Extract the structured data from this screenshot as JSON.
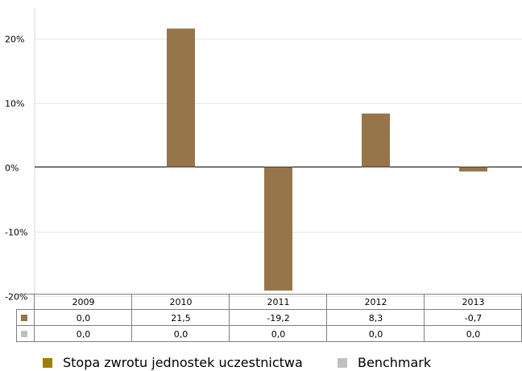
{
  "chart_data": {
    "type": "bar",
    "categories": [
      "2009",
      "2010",
      "2011",
      "2012",
      "2013"
    ],
    "series": [
      {
        "name": "Stopa zwrotu jednostek uczestnictwa",
        "values": [
          0.0,
          21.5,
          -19.2,
          8.3,
          -0.7
        ],
        "labels": [
          "0,0",
          "21,5",
          "-19,2",
          "8,3",
          "-0,7"
        ],
        "color": "#957549",
        "legend_color": "#9d7f00"
      },
      {
        "name": "Benchmark",
        "values": [
          0.0,
          0.0,
          0.0,
          0.0,
          0.0
        ],
        "labels": [
          "0,0",
          "0,0",
          "0,0",
          "0,0",
          "0,0"
        ],
        "color": "#c0c0c0",
        "legend_color": "#c0c0c0"
      }
    ],
    "yticks": [
      {
        "value": 20,
        "label": "20%"
      },
      {
        "value": 10,
        "label": "10%"
      },
      {
        "value": 0,
        "label": "0%"
      },
      {
        "value": -10,
        "label": "-10%"
      },
      {
        "value": -20,
        "label": "-20%"
      }
    ],
    "ylim": [
      -20,
      25
    ],
    "grid": true,
    "data_table": true,
    "legend_position": "bottom"
  }
}
